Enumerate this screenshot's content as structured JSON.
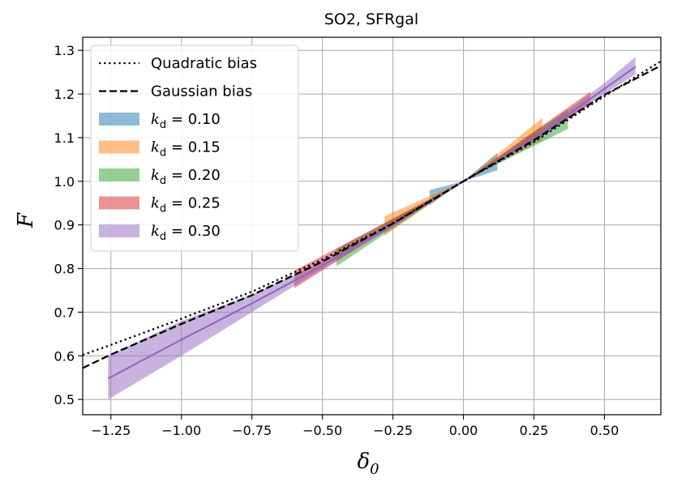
{
  "chart_data": {
    "type": "line",
    "title": "SO2, SFRgal",
    "xlabel": "δ",
    "xlabel_sub": "0",
    "ylabel": "F",
    "xlim": [
      -1.35,
      0.7
    ],
    "ylim": [
      0.465,
      1.33
    ],
    "x_ticks": [
      -1.25,
      -1.0,
      -0.75,
      -0.5,
      -0.25,
      0.0,
      0.25,
      0.5
    ],
    "x_tick_labels": [
      "−1.25",
      "−1.00",
      "−0.75",
      "−0.50",
      "−0.25",
      "0.00",
      "0.25",
      "0.50"
    ],
    "y_ticks": [
      0.5,
      0.6,
      0.7,
      0.8,
      0.9,
      1.0,
      1.1,
      1.2,
      1.3
    ],
    "y_tick_labels": [
      "0.5",
      "0.6",
      "0.7",
      "0.8",
      "0.9",
      "1.0",
      "1.1",
      "1.2",
      "1.3"
    ],
    "grid": true,
    "legend_position": "top-left",
    "reference_curves": [
      {
        "name": "Quadratic bias",
        "style": "dotted",
        "color": "#000000",
        "x": [
          -1.35,
          -1.25,
          -1.0,
          -0.75,
          -0.5,
          -0.25,
          0.0,
          0.25,
          0.5,
          0.7
        ],
        "y": [
          0.602,
          0.625,
          0.685,
          0.747,
          0.821,
          0.904,
          1.0,
          1.09,
          1.195,
          1.275
        ]
      },
      {
        "name": "Gaussian bias",
        "style": "dashed",
        "color": "#000000",
        "x": [
          -1.35,
          -1.25,
          -1.0,
          -0.75,
          -0.5,
          -0.25,
          0.0,
          0.25,
          0.5,
          0.7
        ],
        "y": [
          0.572,
          0.603,
          0.673,
          0.739,
          0.816,
          0.903,
          1.0,
          1.094,
          1.198,
          1.265
        ]
      }
    ],
    "bands": [
      {
        "k": "0.10",
        "color": "#1f77b4",
        "x": [
          -0.12,
          0.0,
          0.12
        ],
        "lower": [
          0.945,
          1.0,
          1.025
        ],
        "upper": [
          0.98,
          1.0,
          1.065
        ]
      },
      {
        "k": "0.15",
        "color": "#ff7f0e",
        "x": [
          -0.28,
          0.0,
          0.28
        ],
        "lower": [
          0.875,
          1.0,
          1.095
        ],
        "upper": [
          0.92,
          1.0,
          1.145
        ]
      },
      {
        "k": "0.20",
        "color": "#2ca02c",
        "x": [
          -0.45,
          0.0,
          0.37
        ],
        "lower": [
          0.805,
          1.0,
          1.12
        ],
        "upper": [
          0.845,
          1.0,
          1.165
        ]
      },
      {
        "k": "0.25",
        "color": "#d62728",
        "x": [
          -0.6,
          0.0,
          0.45
        ],
        "lower": [
          0.755,
          1.0,
          1.175
        ],
        "upper": [
          0.795,
          1.0,
          1.205
        ]
      },
      {
        "k": "0.30",
        "color": "#9467bd",
        "x": [
          -1.26,
          -1.0,
          -0.75,
          -0.5,
          -0.25,
          0.0,
          0.25,
          0.5,
          0.61
        ],
        "lower": [
          0.5,
          0.6,
          0.7,
          0.8,
          0.895,
          1.0,
          1.09,
          1.2,
          1.245
        ],
        "upper": [
          0.6,
          0.68,
          0.74,
          0.815,
          0.905,
          1.0,
          1.105,
          1.225,
          1.285
        ],
        "mean": [
          0.548,
          0.637,
          0.72,
          0.807,
          0.9,
          1.0,
          1.097,
          1.212,
          1.262
        ]
      }
    ],
    "legend": {
      "quadratic": "Quadratic bias",
      "gaussian": "Gaussian bias",
      "k_symbol": "k",
      "k_subscript": "d",
      "equals": " = "
    }
  }
}
